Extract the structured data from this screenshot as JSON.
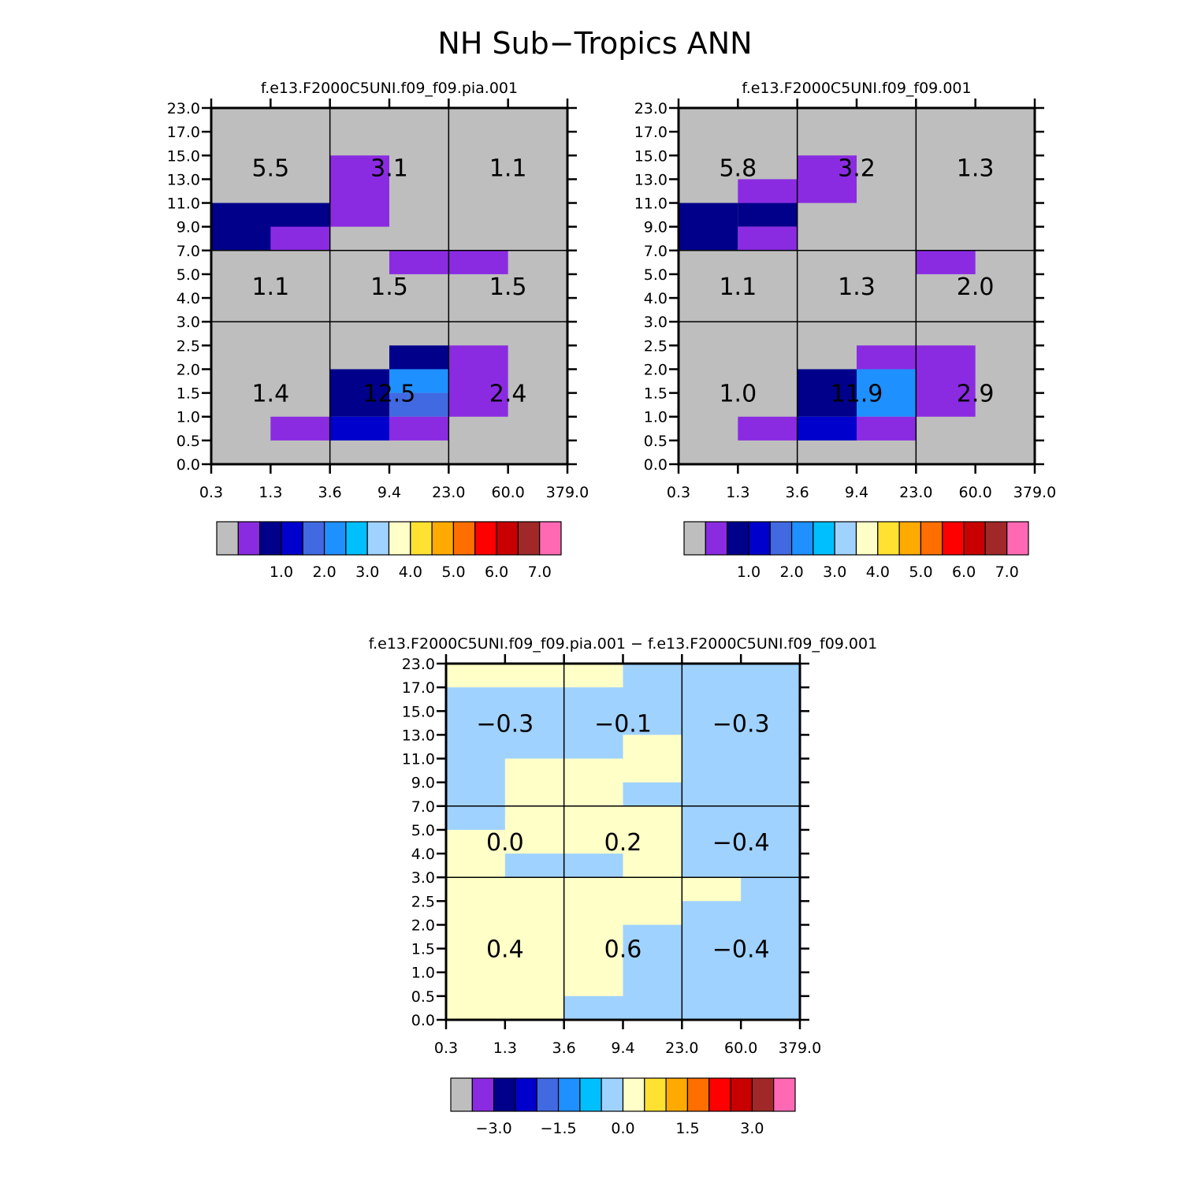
{
  "title": "NH Sub−Tropics ANN",
  "chart_data": [
    {
      "type": "heatmap",
      "title": "f.e13.F2000C5UNI.f09_f09.pia.001",
      "xlabel": "",
      "ylabel": "",
      "x_ticks": [
        "0.3",
        "1.3",
        "3.6",
        "9.4",
        "23.0",
        "60.0",
        "379.0"
      ],
      "y_ticks": [
        "0.0",
        "0.5",
        "1.0",
        "1.5",
        "2.0",
        "2.5",
        "3.0",
        "4.0",
        "5.0",
        "7.0",
        "9.0",
        "11.0",
        "13.0",
        "15.0",
        "17.0",
        "23.0"
      ],
      "grid_x_boundaries": [
        "3.6",
        "23.0"
      ],
      "grid_y_boundaries": [
        "3.0",
        "7.0"
      ],
      "cell_values": [
        {
          "row": 0,
          "col": 0,
          "label": "5.5"
        },
        {
          "row": 0,
          "col": 1,
          "label": "3.1"
        },
        {
          "row": 0,
          "col": 2,
          "label": "1.1"
        },
        {
          "row": 1,
          "col": 0,
          "label": "1.1"
        },
        {
          "row": 1,
          "col": 1,
          "label": "1.5"
        },
        {
          "row": 1,
          "col": 2,
          "label": "1.5"
        },
        {
          "row": 2,
          "col": 0,
          "label": "1.4"
        },
        {
          "row": 2,
          "col": 1,
          "label": "12.5"
        },
        {
          "row": 2,
          "col": 2,
          "label": "2.4"
        }
      ],
      "fills": [
        {
          "x": [
            0,
            2
          ],
          "y": [
            9,
            11
          ],
          "color": "#00008B"
        },
        {
          "x": [
            1,
            2
          ],
          "y": [
            9,
            10
          ],
          "color": "#8A2BE2"
        },
        {
          "x": [
            2,
            3
          ],
          "y": [
            10,
            13
          ],
          "color": "#8A2BE2"
        },
        {
          "x": [
            3,
            5
          ],
          "y": [
            8,
            9
          ],
          "color": "#8A2BE2"
        },
        {
          "x": [
            3,
            4
          ],
          "y": [
            4,
            5
          ],
          "color": "#00008B"
        },
        {
          "x": [
            2,
            3
          ],
          "y": [
            2,
            4
          ],
          "color": "#00008B"
        },
        {
          "x": [
            3,
            4
          ],
          "y": [
            3,
            4
          ],
          "color": "#1E90FF"
        },
        {
          "x": [
            3,
            4
          ],
          "y": [
            2,
            3
          ],
          "color": "#4169E1"
        },
        {
          "x": [
            2,
            3
          ],
          "y": [
            1,
            2
          ],
          "color": "#0000CD"
        },
        {
          "x": [
            3,
            4
          ],
          "y": [
            1,
            2
          ],
          "color": "#8A2BE2"
        },
        {
          "x": [
            4,
            5
          ],
          "y": [
            2,
            5
          ],
          "color": "#8A2BE2"
        },
        {
          "x": [
            1,
            2
          ],
          "y": [
            1,
            2
          ],
          "color": "#8A2BE2"
        }
      ],
      "colorbar": {
        "colors": [
          "#BEBEBE",
          "#8A2BE2",
          "#00008B",
          "#0000CD",
          "#4169E1",
          "#1E90FF",
          "#00BFFF",
          "#A0D2FF",
          "#FFFFC8",
          "#FFE132",
          "#FFAA00",
          "#FF6E00",
          "#FF0000",
          "#C80000",
          "#A02828",
          "#FF69B4"
        ],
        "labels": [
          "1.0",
          "2.0",
          "3.0",
          "4.0",
          "5.0",
          "6.0",
          "7.0"
        ],
        "label_boundaries": [
          3,
          5,
          7,
          9,
          11,
          13,
          15
        ]
      }
    },
    {
      "type": "heatmap",
      "title": "f.e13.F2000C5UNI.f09_f09.001",
      "xlabel": "",
      "ylabel": "",
      "x_ticks": [
        "0.3",
        "1.3",
        "3.6",
        "9.4",
        "23.0",
        "60.0",
        "379.0"
      ],
      "y_ticks": [
        "0.0",
        "0.5",
        "1.0",
        "1.5",
        "2.0",
        "2.5",
        "3.0",
        "4.0",
        "5.0",
        "7.0",
        "9.0",
        "11.0",
        "13.0",
        "15.0",
        "17.0",
        "23.0"
      ],
      "grid_x_boundaries": [
        "3.6",
        "23.0"
      ],
      "grid_y_boundaries": [
        "3.0",
        "7.0"
      ],
      "cell_values": [
        {
          "row": 0,
          "col": 0,
          "label": "5.8"
        },
        {
          "row": 0,
          "col": 1,
          "label": "3.2"
        },
        {
          "row": 0,
          "col": 2,
          "label": "1.3"
        },
        {
          "row": 1,
          "col": 0,
          "label": "1.1"
        },
        {
          "row": 1,
          "col": 1,
          "label": "1.3"
        },
        {
          "row": 1,
          "col": 2,
          "label": "2.0"
        },
        {
          "row": 2,
          "col": 0,
          "label": "1.0"
        },
        {
          "row": 2,
          "col": 1,
          "label": "11.9"
        },
        {
          "row": 2,
          "col": 2,
          "label": "2.9"
        }
      ],
      "fills": [
        {
          "x": [
            0,
            1
          ],
          "y": [
            9,
            11
          ],
          "color": "#00008B"
        },
        {
          "x": [
            1,
            2
          ],
          "y": [
            10,
            11
          ],
          "color": "#00008B"
        },
        {
          "x": [
            1,
            2
          ],
          "y": [
            9,
            10
          ],
          "color": "#8A2BE2"
        },
        {
          "x": [
            1,
            2
          ],
          "y": [
            11,
            12
          ],
          "color": "#8A2BE2"
        },
        {
          "x": [
            2,
            3
          ],
          "y": [
            11,
            13
          ],
          "color": "#8A2BE2"
        },
        {
          "x": [
            4,
            5
          ],
          "y": [
            8,
            9
          ],
          "color": "#8A2BE2"
        },
        {
          "x": [
            2,
            3
          ],
          "y": [
            2,
            4
          ],
          "color": "#00008B"
        },
        {
          "x": [
            3,
            4
          ],
          "y": [
            2,
            4
          ],
          "color": "#1E90FF"
        },
        {
          "x": [
            3,
            4
          ],
          "y": [
            4,
            5
          ],
          "color": "#8A2BE2"
        },
        {
          "x": [
            2,
            3
          ],
          "y": [
            1,
            2
          ],
          "color": "#0000CD"
        },
        {
          "x": [
            3,
            4
          ],
          "y": [
            1,
            2
          ],
          "color": "#8A2BE2"
        },
        {
          "x": [
            4,
            5
          ],
          "y": [
            2,
            5
          ],
          "color": "#8A2BE2"
        },
        {
          "x": [
            1,
            2
          ],
          "y": [
            1,
            2
          ],
          "color": "#8A2BE2"
        }
      ],
      "colorbar": {
        "colors": [
          "#BEBEBE",
          "#8A2BE2",
          "#00008B",
          "#0000CD",
          "#4169E1",
          "#1E90FF",
          "#00BFFF",
          "#A0D2FF",
          "#FFFFC8",
          "#FFE132",
          "#FFAA00",
          "#FF6E00",
          "#FF0000",
          "#C80000",
          "#A02828",
          "#FF69B4"
        ],
        "labels": [
          "1.0",
          "2.0",
          "3.0",
          "4.0",
          "5.0",
          "6.0",
          "7.0"
        ],
        "label_boundaries": [
          3,
          5,
          7,
          9,
          11,
          13,
          15
        ]
      }
    },
    {
      "type": "heatmap",
      "title": "f.e13.F2000C5UNI.f09_f09.pia.001 − f.e13.F2000C5UNI.f09_f09.001",
      "xlabel": "",
      "ylabel": "",
      "x_ticks": [
        "0.3",
        "1.3",
        "3.6",
        "9.4",
        "23.0",
        "60.0",
        "379.0"
      ],
      "y_ticks": [
        "0.0",
        "0.5",
        "1.0",
        "1.5",
        "2.0",
        "2.5",
        "3.0",
        "4.0",
        "5.0",
        "7.0",
        "9.0",
        "11.0",
        "13.0",
        "15.0",
        "17.0",
        "23.0"
      ],
      "grid_x_boundaries": [
        "3.6",
        "23.0"
      ],
      "grid_y_boundaries": [
        "3.0",
        "7.0"
      ],
      "cell_values": [
        {
          "row": 0,
          "col": 0,
          "label": "−0.3"
        },
        {
          "row": 0,
          "col": 1,
          "label": "−0.1"
        },
        {
          "row": 0,
          "col": 2,
          "label": "−0.3"
        },
        {
          "row": 1,
          "col": 0,
          "label": "0.0"
        },
        {
          "row": 1,
          "col": 1,
          "label": "0.2"
        },
        {
          "row": 1,
          "col": 2,
          "label": "−0.4"
        },
        {
          "row": 2,
          "col": 0,
          "label": "0.4"
        },
        {
          "row": 2,
          "col": 1,
          "label": "0.6"
        },
        {
          "row": 2,
          "col": 2,
          "label": "−0.4"
        }
      ],
      "background_color": "#A0D2FF",
      "fills": [
        {
          "x": [
            0,
            3
          ],
          "y": [
            14,
            15
          ],
          "color": "#FFFFC8"
        },
        {
          "x": [
            1,
            3
          ],
          "y": [
            7,
            11
          ],
          "color": "#FFFFC8"
        },
        {
          "x": [
            3,
            4
          ],
          "y": [
            10,
            12
          ],
          "color": "#FFFFC8"
        },
        {
          "x": [
            3,
            4
          ],
          "y": [
            6,
            9
          ],
          "color": "#FFFFC8"
        },
        {
          "x": [
            0,
            1
          ],
          "y": [
            6,
            8
          ],
          "color": "#FFFFC8"
        },
        {
          "x": [
            0,
            4
          ],
          "y": [
            0,
            6
          ],
          "color": "#FFFFC8"
        },
        {
          "x": [
            2,
            3
          ],
          "y": [
            0,
            1
          ],
          "color": "#A0D2FF"
        },
        {
          "x": [
            3,
            4
          ],
          "y": [
            0,
            4
          ],
          "color": "#A0D2FF"
        },
        {
          "x": [
            4,
            5
          ],
          "y": [
            5,
            6
          ],
          "color": "#FFFFC8"
        }
      ],
      "colorbar": {
        "colors": [
          "#BEBEBE",
          "#8A2BE2",
          "#00008B",
          "#0000CD",
          "#4169E1",
          "#1E90FF",
          "#00BFFF",
          "#A0D2FF",
          "#FFFFC8",
          "#FFE132",
          "#FFAA00",
          "#FF6E00",
          "#FF0000",
          "#C80000",
          "#A02828",
          "#FF69B4"
        ],
        "labels": [
          "−3.0",
          "−1.5",
          "0.0",
          "1.5",
          "3.0"
        ],
        "label_boundaries": [
          2,
          5,
          8,
          11,
          14
        ]
      }
    }
  ]
}
